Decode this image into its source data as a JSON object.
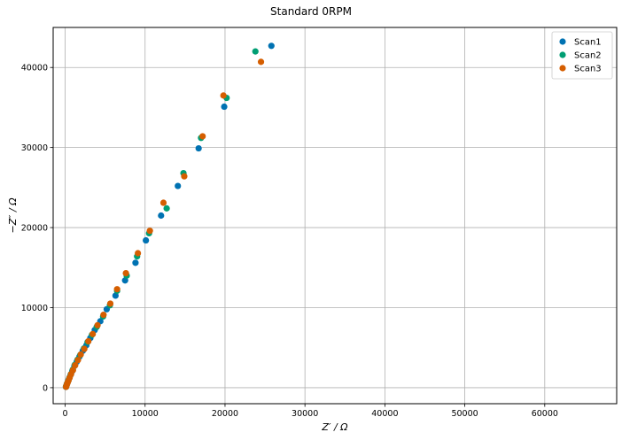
{
  "chart_data": {
    "type": "scatter",
    "title": "Standard 0RPM",
    "xlabel": "Z′ / Ω",
    "ylabel": "−Z″ / Ω",
    "xlim": [
      -1500,
      69000
    ],
    "ylim": [
      -2000,
      45000
    ],
    "xticks": [
      0,
      10000,
      20000,
      30000,
      40000,
      50000,
      60000
    ],
    "yticks": [
      0,
      10000,
      20000,
      30000,
      40000
    ],
    "grid": true,
    "legend_position": "top-right",
    "series": [
      {
        "name": "Scan1",
        "color": "#0072b2",
        "points": [
          [
            100,
            100
          ],
          [
            150,
            250
          ],
          [
            220,
            450
          ],
          [
            300,
            650
          ],
          [
            400,
            900
          ],
          [
            520,
            1200
          ],
          [
            680,
            1600
          ],
          [
            900,
            2100
          ],
          [
            1150,
            2700
          ],
          [
            1450,
            3250
          ],
          [
            1800,
            3900
          ],
          [
            2200,
            4600
          ],
          [
            2650,
            5300
          ],
          [
            3150,
            6200
          ],
          [
            3700,
            7200
          ],
          [
            4400,
            8300
          ],
          [
            5200,
            9800
          ],
          [
            6300,
            11500
          ],
          [
            7500,
            13400
          ],
          [
            8800,
            15600
          ],
          [
            10100,
            18400
          ],
          [
            12000,
            21500
          ],
          [
            14100,
            25200
          ],
          [
            16700,
            29900
          ],
          [
            19900,
            35100
          ],
          [
            25800,
            42700
          ]
        ]
      },
      {
        "name": "Scan2",
        "color": "#009e73",
        "points": [
          [
            100,
            120
          ],
          [
            160,
            280
          ],
          [
            230,
            480
          ],
          [
            320,
            700
          ],
          [
            420,
            950
          ],
          [
            550,
            1280
          ],
          [
            720,
            1700
          ],
          [
            950,
            2250
          ],
          [
            1200,
            2850
          ],
          [
            1550,
            3500
          ],
          [
            1900,
            4100
          ],
          [
            2350,
            4900
          ],
          [
            2800,
            5700
          ],
          [
            3350,
            6600
          ],
          [
            3950,
            7600
          ],
          [
            4750,
            8900
          ],
          [
            5600,
            10300
          ],
          [
            6500,
            12100
          ],
          [
            7700,
            14000
          ],
          [
            9000,
            16400
          ],
          [
            10500,
            19300
          ],
          [
            12700,
            22400
          ],
          [
            14800,
            26800
          ],
          [
            17000,
            31200
          ],
          [
            20200,
            36200
          ],
          [
            23800,
            42000
          ]
        ]
      },
      {
        "name": "Scan3",
        "color": "#d55e00",
        "points": [
          [
            110,
            110
          ],
          [
            170,
            270
          ],
          [
            240,
            470
          ],
          [
            330,
            690
          ],
          [
            430,
            930
          ],
          [
            560,
            1250
          ],
          [
            740,
            1680
          ],
          [
            980,
            2200
          ],
          [
            1250,
            2800
          ],
          [
            1600,
            3450
          ],
          [
            1950,
            4150
          ],
          [
            2400,
            4850
          ],
          [
            2900,
            5800
          ],
          [
            3450,
            6700
          ],
          [
            4050,
            7800
          ],
          [
            4800,
            9100
          ],
          [
            5650,
            10500
          ],
          [
            6500,
            12300
          ],
          [
            7600,
            14300
          ],
          [
            9100,
            16800
          ],
          [
            10600,
            19600
          ],
          [
            12300,
            23100
          ],
          [
            14900,
            26400
          ],
          [
            17200,
            31400
          ],
          [
            19800,
            36500
          ],
          [
            24500,
            40700
          ]
        ]
      }
    ]
  }
}
